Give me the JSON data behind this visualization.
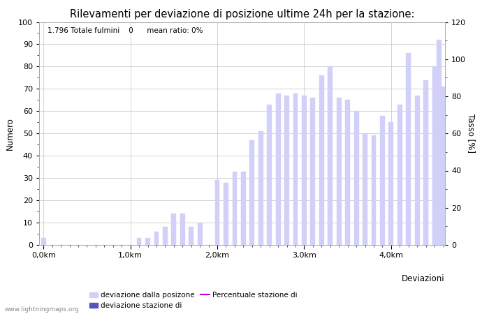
{
  "title": "Rilevamenti per deviazione di posizione ultime 24h per la stazione:",
  "xlabel": "Deviazioni",
  "ylabel_left": "Numero",
  "ylabel_right": "Tasso [%]",
  "info_text": "1.796 Totale fulmini    0      mean ratio: 0%",
  "watermark": "www.lightningmaps.org",
  "bar_positions": [
    0.0,
    0.1,
    0.2,
    0.3,
    0.4,
    0.5,
    0.6,
    0.7,
    0.8,
    0.9,
    1.0,
    1.1,
    1.2,
    1.3,
    1.4,
    1.5,
    1.6,
    1.7,
    1.8,
    1.9,
    2.0,
    2.1,
    2.2,
    2.3,
    2.4,
    2.5,
    2.6,
    2.7,
    2.8,
    2.9,
    3.0,
    3.1,
    3.2,
    3.3,
    3.4,
    3.5,
    3.6,
    3.7,
    3.8,
    3.9,
    4.0,
    4.1,
    4.2,
    4.3,
    4.4,
    4.5
  ],
  "bar_heights": [
    3,
    0,
    0,
    0,
    0,
    0,
    0,
    0,
    0,
    0,
    0,
    3,
    3,
    6,
    8,
    14,
    14,
    8,
    10,
    0,
    29,
    28,
    33,
    33,
    47,
    51,
    63,
    68,
    67,
    68,
    67,
    66,
    76,
    80,
    66,
    65,
    60,
    50,
    49,
    58,
    55,
    63,
    86,
    67,
    74,
    74
  ],
  "bar_color_light": "#d0d0f8",
  "bar_color_dark": "#5555bb",
  "bar_width": 0.055,
  "ylim_left": [
    0,
    100
  ],
  "ylim_right": [
    0,
    120
  ],
  "xlim": [
    -0.05,
    4.62
  ],
  "xtick_positions": [
    0.0,
    1.0,
    2.0,
    3.0,
    4.0
  ],
  "xtick_labels": [
    "0,0km",
    "1,0km",
    "2,0km",
    "3,0km",
    "4,0km"
  ],
  "ytick_left": [
    0,
    10,
    20,
    30,
    40,
    50,
    60,
    70,
    80,
    90,
    100
  ],
  "ytick_right": [
    0,
    20,
    40,
    60,
    80,
    100,
    120
  ],
  "extra_bars": [
    [
      4.4,
      70
    ],
    [
      4.5,
      80
    ],
    [
      4.55,
      92
    ],
    [
      4.6,
      71
    ]
  ],
  "legend_light_label": "deviazione dalla posizone",
  "legend_dark_label": "deviazione stazione di",
  "legend_line_label": "Percentuale stazione di",
  "legend_line_color": "#cc00cc",
  "background_color": "#ffffff",
  "grid_color": "#cccccc",
  "title_fontsize": 10.5,
  "axis_fontsize": 8.5,
  "tick_fontsize": 8
}
